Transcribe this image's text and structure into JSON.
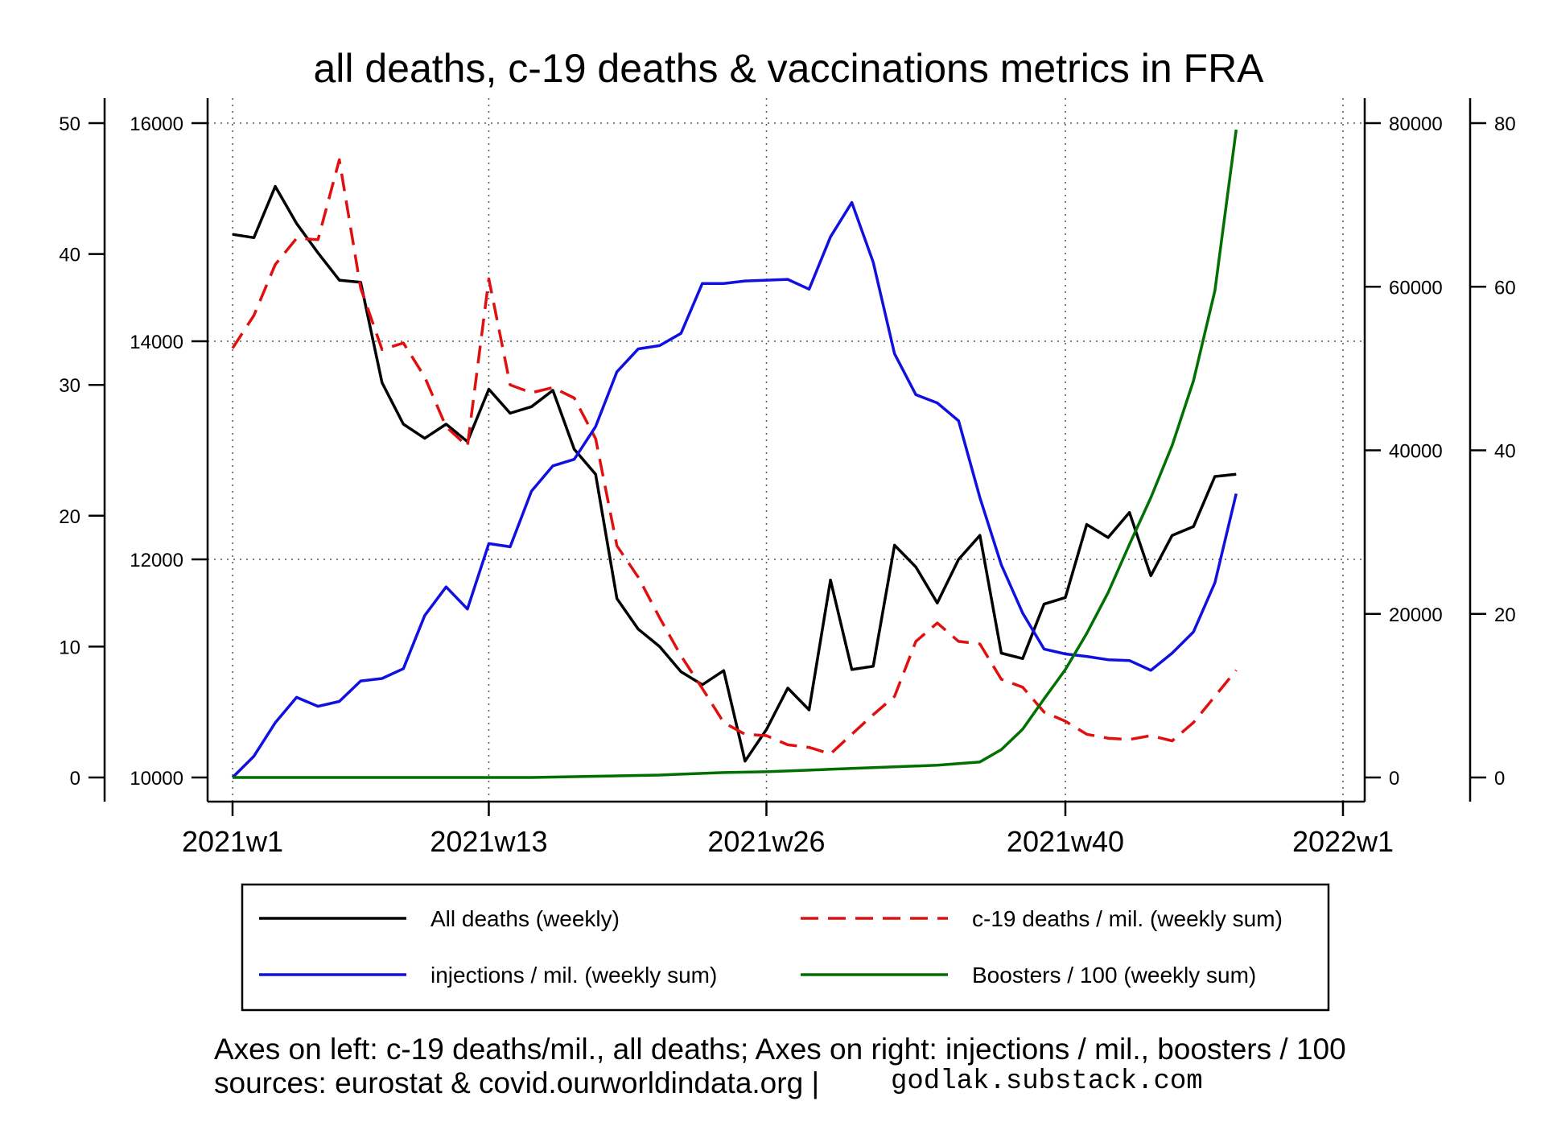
{
  "chart_data": {
    "type": "line",
    "title": "all deaths, c-19 deaths & vaccinations metrics in FRA",
    "x_tick_labels": [
      "2021w1",
      "2021w13",
      "2021w26",
      "2021w40",
      "2022w1"
    ],
    "x_tick_weeks": [
      1,
      13,
      26,
      40,
      53
    ],
    "x_range": [
      1,
      53
    ],
    "left_axis_outer": {
      "ticks": [
        "0",
        "10",
        "20",
        "30",
        "40",
        "50"
      ],
      "ylim": [
        0,
        50
      ]
    },
    "left_axis_inner": {
      "ticks": [
        "10000",
        "12000",
        "14000",
        "16000"
      ],
      "ylim": [
        10000,
        16000
      ]
    },
    "right_axis_inner": {
      "ticks": [
        "0",
        "20000",
        "40000",
        "60000",
        "80000"
      ],
      "ylim": [
        0,
        80000
      ]
    },
    "right_axis_outer": {
      "ticks": [
        "0",
        "20",
        "40",
        "60",
        "80"
      ],
      "ylim": [
        0,
        80
      ]
    },
    "series": [
      {
        "name": "All deaths (weekly)",
        "axis": "left_axis_inner",
        "color": "#000000",
        "dash": "solid",
        "x": [
          1,
          2,
          3,
          4,
          5,
          6,
          7,
          8,
          9,
          10,
          11,
          12,
          13,
          14,
          15,
          16,
          17,
          18,
          19,
          20,
          21,
          22,
          23,
          24,
          25,
          26,
          27,
          28,
          29,
          30,
          31,
          32,
          33,
          34,
          35,
          36,
          37,
          38,
          39,
          40,
          41,
          42,
          43,
          44,
          45,
          46,
          47,
          48
        ],
        "values": [
          14980,
          14950,
          15420,
          15080,
          14810,
          14560,
          14540,
          13620,
          13240,
          13110,
          13240,
          13080,
          13560,
          13340,
          13400,
          13550,
          13010,
          12780,
          11640,
          11360,
          11200,
          10970,
          10850,
          10980,
          10150,
          10440,
          10820,
          10620,
          11810,
          10990,
          11020,
          12130,
          11930,
          11600,
          12000,
          12220,
          11140,
          11090,
          11590,
          11650,
          12320,
          12200,
          12430,
          11850,
          12220,
          12300,
          12760,
          12780
        ]
      },
      {
        "name": "c-19 deaths / mil. (weekly sum)",
        "axis": "left_axis_outer",
        "color": "#e01010",
        "dash": "dashed",
        "x": [
          1,
          2,
          3,
          4,
          5,
          6,
          7,
          8,
          9,
          10,
          11,
          12,
          13,
          14,
          15,
          16,
          17,
          18,
          19,
          20,
          21,
          22,
          23,
          24,
          25,
          26,
          27,
          28,
          29,
          30,
          31,
          32,
          33,
          34,
          35,
          36,
          37,
          38,
          39,
          40,
          41,
          42,
          43,
          44,
          45,
          46,
          47,
          48
        ],
        "values": [
          32.8,
          35.3,
          39.2,
          41.2,
          41.1,
          47.2,
          37.4,
          32.7,
          33.2,
          30.6,
          26.8,
          25.3,
          38.1,
          30.0,
          29.4,
          29.8,
          29.0,
          25.9,
          17.7,
          15.3,
          12.2,
          9.3,
          6.8,
          4.2,
          3.3,
          3.2,
          2.5,
          2.3,
          1.8,
          3.3,
          4.8,
          6.2,
          10.4,
          11.8,
          10.4,
          10.2,
          7.5,
          6.9,
          5.0,
          4.3,
          3.3,
          3.0,
          2.9,
          3.2,
          2.8,
          4.2,
          6.2,
          8.2
        ]
      },
      {
        "name": "injections / mil. (weekly sum)",
        "axis": "right_axis_inner",
        "color": "#1010e0",
        "dash": "solid",
        "x": [
          1,
          2,
          3,
          4,
          5,
          6,
          7,
          8,
          9,
          10,
          11,
          12,
          13,
          14,
          15,
          16,
          17,
          18,
          19,
          20,
          21,
          22,
          23,
          24,
          25,
          26,
          27,
          28,
          29,
          30,
          31,
          32,
          33,
          34,
          35,
          36,
          37,
          38,
          39,
          40,
          41,
          42,
          43,
          44,
          45,
          46,
          47,
          48
        ],
        "values": [
          0,
          2600,
          6700,
          9800,
          8700,
          9300,
          11800,
          12100,
          13300,
          19800,
          23300,
          20600,
          28600,
          28200,
          35000,
          38100,
          38900,
          42900,
          49600,
          52400,
          52800,
          54300,
          60400,
          60400,
          60700,
          60800,
          60900,
          59700,
          66100,
          70300,
          63000,
          51800,
          46800,
          45800,
          43600,
          34200,
          26000,
          20100,
          15700,
          15100,
          14800,
          14400,
          14300,
          13100,
          15200,
          17800,
          23800,
          34700
        ]
      },
      {
        "name": "Boosters / 100 (weekly sum)",
        "axis": "right_axis_outer",
        "color": "#007000",
        "dash": "solid",
        "x": [
          1,
          2,
          3,
          4,
          5,
          6,
          7,
          8,
          9,
          10,
          11,
          12,
          13,
          14,
          15,
          16,
          17,
          18,
          19,
          20,
          21,
          22,
          23,
          24,
          25,
          26,
          27,
          28,
          29,
          30,
          31,
          32,
          33,
          34,
          35,
          36,
          37,
          38,
          39,
          40,
          41,
          42,
          43,
          44,
          45,
          46,
          47,
          48
        ],
        "values": [
          0,
          0,
          0,
          0,
          0,
          0,
          0,
          0,
          0,
          0,
          0,
          0,
          0,
          0,
          0,
          0.05,
          0.1,
          0.15,
          0.2,
          0.25,
          0.3,
          0.4,
          0.5,
          0.6,
          0.65,
          0.7,
          0.8,
          0.9,
          1.0,
          1.1,
          1.2,
          1.3,
          1.4,
          1.5,
          1.7,
          1.9,
          3.4,
          5.9,
          9.6,
          13.2,
          17.6,
          22.6,
          28.5,
          34.2,
          40.6,
          48.5,
          59.5,
          79.2
        ]
      }
    ]
  },
  "legend": [
    {
      "label": "All deaths (weekly)",
      "color": "#000000",
      "dash": "solid"
    },
    {
      "label": "c-19 deaths / mil. (weekly sum)",
      "color": "#e01010",
      "dash": "dashed"
    },
    {
      "label": "injections / mil. (weekly sum)",
      "color": "#1010e0",
      "dash": "solid"
    },
    {
      "label": "Boosters / 100 (weekly sum)",
      "color": "#007000",
      "dash": "solid"
    }
  ],
  "footnote": {
    "line1": "Axes on left: c-19 deaths/mil., all deaths; Axes on right: injections / mil., boosters / 100",
    "line2": "sources: eurostat & covid.ourworldindata.org |",
    "site": "godlak.substack.com"
  }
}
